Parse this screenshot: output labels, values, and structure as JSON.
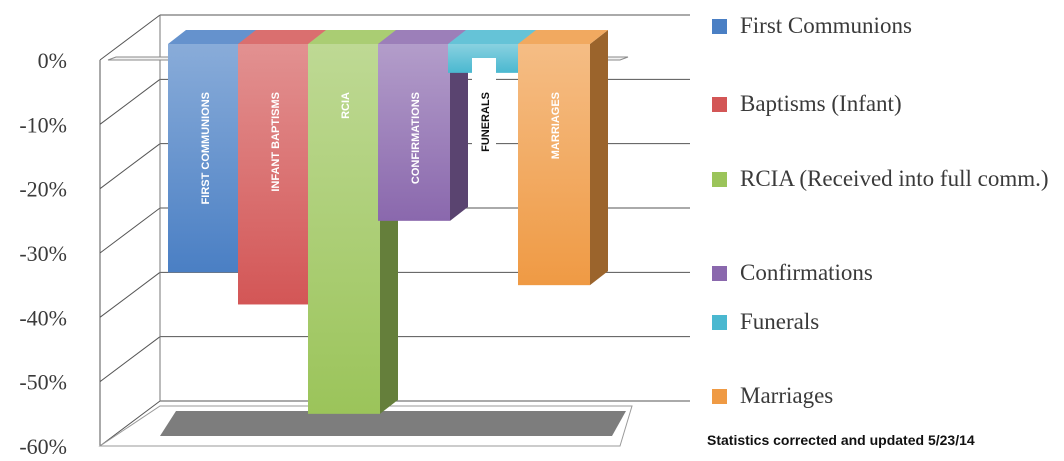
{
  "chart_data": {
    "type": "bar",
    "categories": [
      "FIRST COMMUNIONS",
      "INFANT BAPTISMS",
      "RCIA",
      "CONFIRMATIONS",
      "FUNERALS",
      "MARRIAGES"
    ],
    "values": [
      -33,
      -38,
      -55,
      -25,
      -2,
      -35
    ],
    "series_colors": [
      "#4a7fc4",
      "#d35656",
      "#9bc45a",
      "#8a68ad",
      "#4ab8d0",
      "#ef9a44"
    ],
    "ylim": [
      -60,
      0
    ],
    "yticks": [
      "0%",
      "-10%",
      "-20%",
      "-30%",
      "-40%",
      "-50%",
      "-60%"
    ],
    "ytick_values": [
      0,
      -10,
      -20,
      -30,
      -40,
      -50,
      -60
    ],
    "grid": true,
    "legend_position": "right",
    "legend": [
      {
        "label": "First Communions",
        "color": "#4a7fc4"
      },
      {
        "label": "Baptisms (Infant)",
        "color": "#d35656"
      },
      {
        "label": "RCIA (Received into full comm.)",
        "color": "#9bc45a"
      },
      {
        "label": "Confirmations",
        "color": "#8a68ad"
      },
      {
        "label": "Funerals",
        "color": "#4ab8d0"
      },
      {
        "label": "Marriages",
        "color": "#ef9a44"
      }
    ]
  },
  "footnote": "Statistics corrected and updated 5/23/14"
}
